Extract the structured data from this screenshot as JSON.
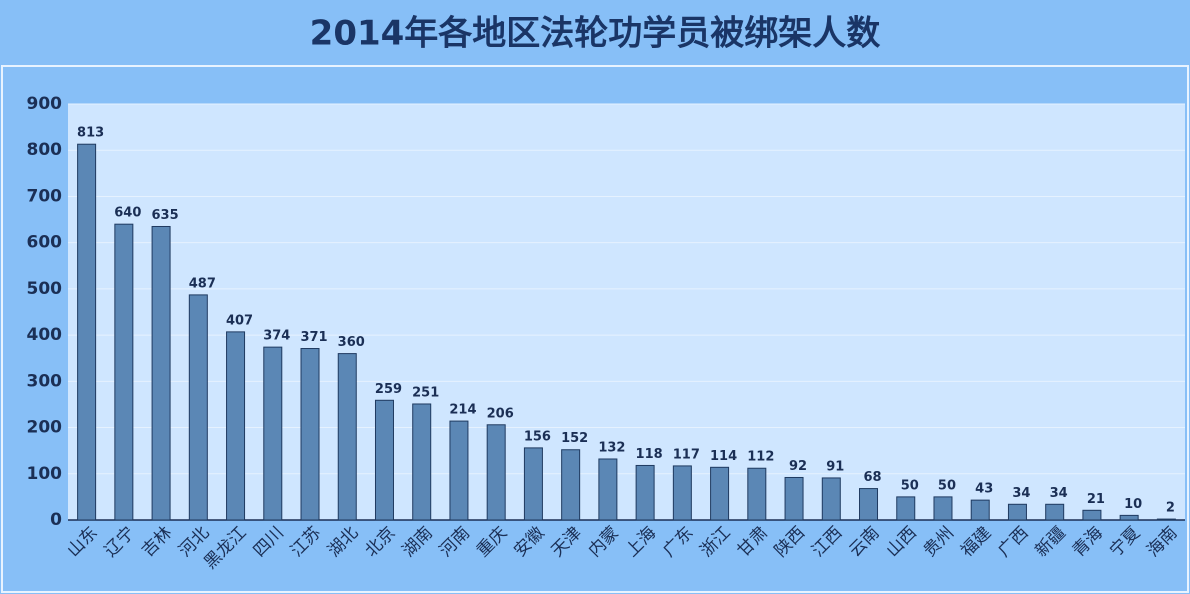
{
  "chart_data": {
    "type": "bar",
    "title": "2014年各地区法轮功学员被绑架人数",
    "categories": [
      "山东",
      "辽宁",
      "吉林",
      "河北",
      "黑龙江",
      "四川",
      "江苏",
      "湖北",
      "北京",
      "湖南",
      "河南",
      "重庆",
      "安徽",
      "天津",
      "内蒙",
      "上海",
      "广东",
      "浙江",
      "甘肃",
      "陕西",
      "江西",
      "云南",
      "山西",
      "贵州",
      "福建",
      "广西",
      "新疆",
      "青海",
      "宁夏",
      "海南"
    ],
    "values": [
      813,
      640,
      635,
      487,
      407,
      374,
      371,
      360,
      259,
      251,
      214,
      206,
      156,
      152,
      132,
      118,
      117,
      114,
      112,
      92,
      91,
      68,
      50,
      50,
      43,
      34,
      34,
      21,
      10,
      2
    ],
    "color": "#5b87b5",
    "ylim": [
      0,
      900
    ],
    "yticks": [
      0,
      100,
      200,
      300,
      400,
      500,
      600,
      700,
      800,
      900
    ],
    "grid": true
  }
}
